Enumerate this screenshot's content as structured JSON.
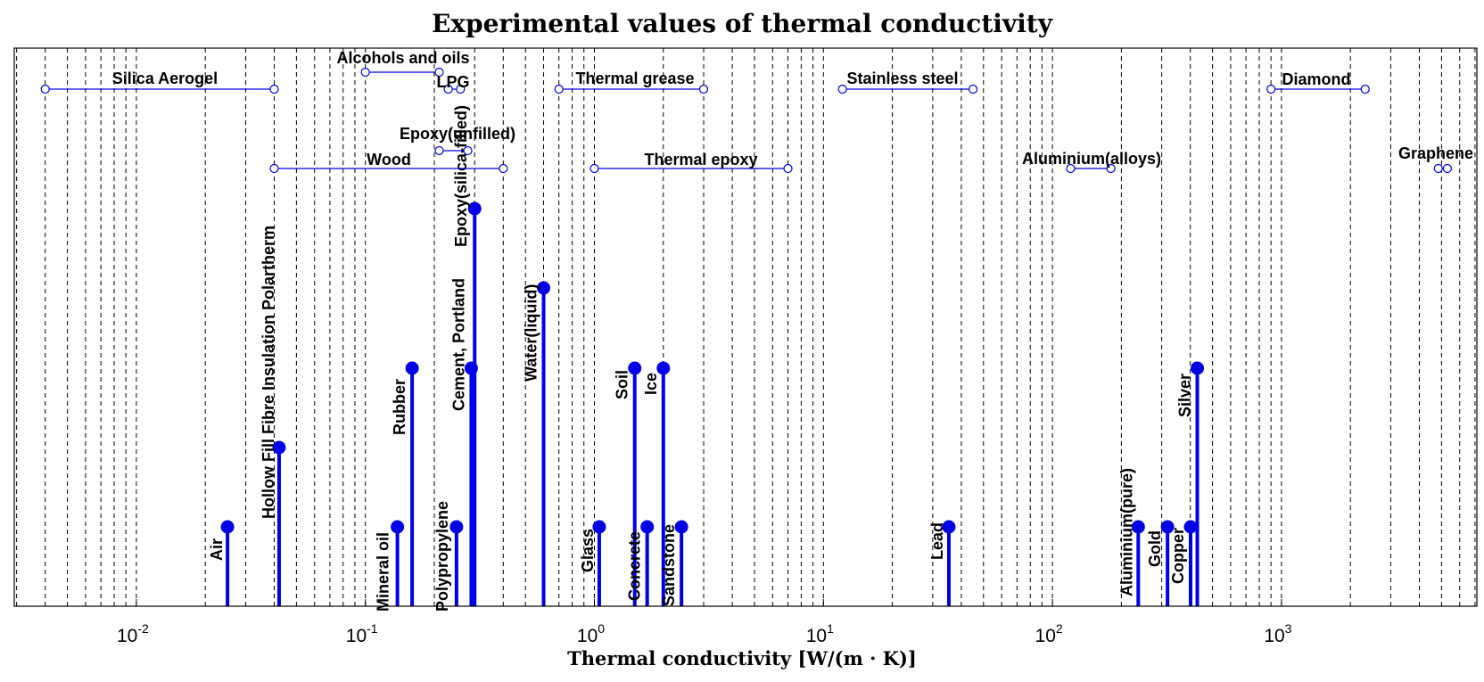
{
  "chart_data": {
    "type": "stem",
    "title": "Experimental values of thermal conductivity",
    "xlabel": "Thermal conductivity [W/(m · K)]",
    "xscale": "log",
    "xlim": [
      0.0035,
      7000
    ],
    "grid": "vertical-dashed",
    "x_ticks": [
      {
        "base": "10",
        "exp": "-2",
        "value": 0.01
      },
      {
        "base": "10",
        "exp": "-1",
        "value": 0.1
      },
      {
        "base": "10",
        "exp": "0",
        "value": 1
      },
      {
        "base": "10",
        "exp": "1",
        "value": 10
      },
      {
        "base": "10",
        "exp": "2",
        "value": 100
      },
      {
        "base": "10",
        "exp": "3",
        "value": 1000
      }
    ],
    "stems": [
      {
        "label": "Air",
        "value": 0.025,
        "level": 1
      },
      {
        "label": "Hollow Fill Fibre Insulation Polartherm",
        "value": 0.042,
        "level": 2
      },
      {
        "label": "Mineral oil",
        "value": 0.138,
        "level": 1
      },
      {
        "label": "Rubber",
        "value": 0.16,
        "level": 3
      },
      {
        "label": "Polypropylene",
        "value": 0.25,
        "level": 1
      },
      {
        "label": "Cement, Portland",
        "value": 0.29,
        "level": 3
      },
      {
        "label": "Epoxy(silica-filled)",
        "value": 0.3,
        "level": 5
      },
      {
        "label": "Water(liquid)",
        "value": 0.6,
        "level": 4
      },
      {
        "label": "Glass",
        "value": 1.05,
        "level": 1
      },
      {
        "label": "Soil",
        "value": 1.5,
        "level": 3
      },
      {
        "label": "Concrete",
        "value": 1.7,
        "level": 1
      },
      {
        "label": "Ice",
        "value": 2.0,
        "level": 3
      },
      {
        "label": "Sandstone",
        "value": 2.4,
        "level": 1
      },
      {
        "label": "Lead",
        "value": 35.3,
        "level": 1
      },
      {
        "label": "Aluminium(pure)",
        "value": 237,
        "level": 1
      },
      {
        "label": "Gold",
        "value": 318,
        "level": 1
      },
      {
        "label": "Copper",
        "value": 401,
        "level": 1
      },
      {
        "label": "Silver",
        "value": 429,
        "level": 3
      }
    ],
    "ranges": [
      {
        "label": "Silica Aerogel",
        "min": 0.004,
        "max": 0.04,
        "row": 1
      },
      {
        "label": "Alcohols and oils",
        "min": 0.1,
        "max": 0.21,
        "row": 0
      },
      {
        "label": "LPG",
        "min": 0.23,
        "max": 0.26,
        "row": 1
      },
      {
        "label": "Thermal grease",
        "min": 0.7,
        "max": 3,
        "row": 1
      },
      {
        "label": "Stainless steel",
        "min": 12.11,
        "max": 45,
        "row": 1
      },
      {
        "label": "Diamond",
        "min": 900,
        "max": 2320,
        "row": 1
      },
      {
        "label": "Epoxy(unfilled)",
        "min": 0.21,
        "max": 0.28,
        "row": 2
      },
      {
        "label": "Wood",
        "min": 0.04,
        "max": 0.4,
        "row": 3
      },
      {
        "label": "Thermal epoxy",
        "min": 1,
        "max": 7,
        "row": 3
      },
      {
        "label": "Aluminium(alloys)",
        "min": 120,
        "max": 180,
        "row": 3
      },
      {
        "label": "Graphene",
        "min": 4840,
        "max": 5300,
        "row": 3
      }
    ],
    "colors": {
      "series": "#0000e6",
      "grid": "#000000",
      "axes": "#000000"
    }
  }
}
